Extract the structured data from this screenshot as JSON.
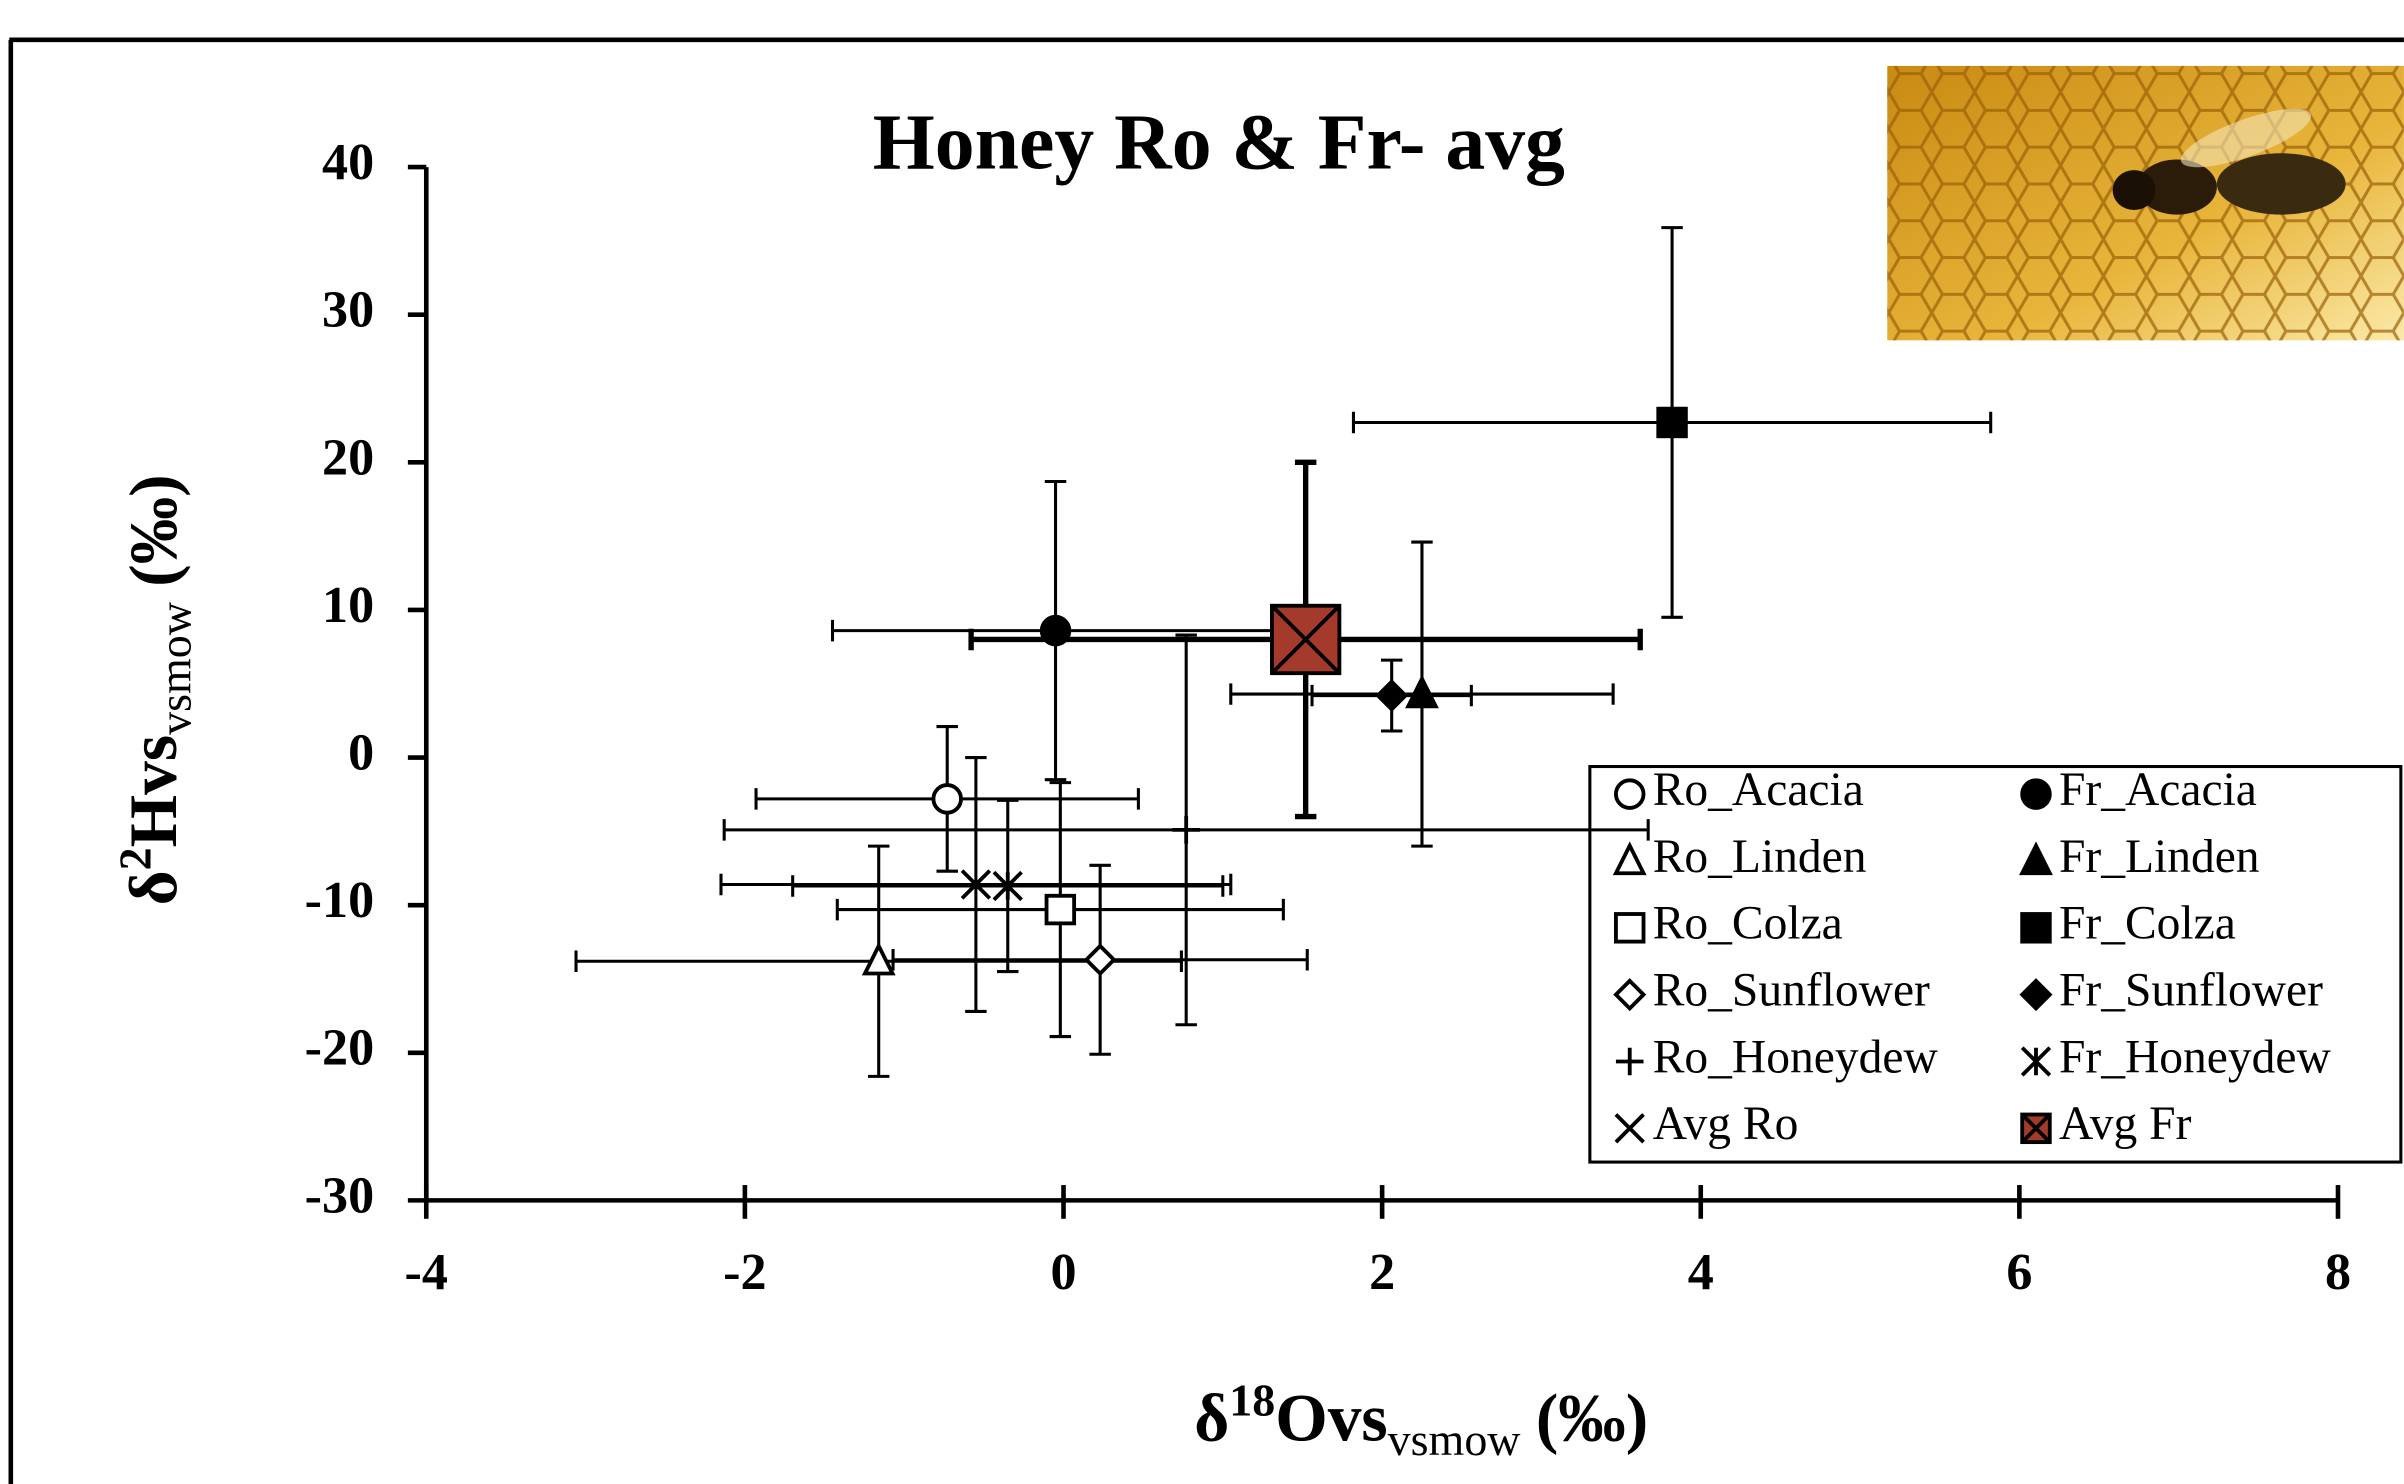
{
  "chart_data": {
    "type": "scatter",
    "title": "Honey Ro & Fr- avg",
    "x_label": {
      "symbol": "δ",
      "sup": "18",
      "main": "Ovs",
      "sub": "vsmow",
      "unit": "(‰)"
    },
    "y_label": {
      "symbol": "δ",
      "sup": "2",
      "main": "Hvs",
      "sub": "vsmow",
      "unit": "(‰)"
    },
    "xlim": [
      -4,
      8
    ],
    "xticks": [
      -4,
      -2,
      0,
      2,
      4,
      6,
      8
    ],
    "ylim": [
      -30,
      40
    ],
    "yticks": [
      -30,
      -20,
      -10,
      0,
      10,
      20,
      30,
      40
    ],
    "legend": "lower right",
    "series": [
      {
        "name": "Ro_Acacia",
        "marker": "circle-open",
        "color": "#000000",
        "x": [
          -0.73
        ],
        "y": [
          -2.8
        ],
        "xerr": [
          1.2
        ],
        "yerr": [
          4.9
        ]
      },
      {
        "name": "Fr_Acacia",
        "marker": "circle",
        "color": "#000000",
        "x": [
          -0.05
        ],
        "y": [
          8.6
        ],
        "xerr": [
          1.4
        ],
        "yerr": [
          10.1
        ]
      },
      {
        "name": "Ro_Linden",
        "marker": "triangle-open",
        "color": "#000000",
        "x": [
          -1.16
        ],
        "y": [
          -13.8
        ],
        "xerr": [
          1.9
        ],
        "yerr": [
          7.8
        ]
      },
      {
        "name": "Fr_Linden",
        "marker": "triangle",
        "color": "#000000",
        "x": [
          2.25
        ],
        "y": [
          4.3
        ],
        "xerr": [
          1.2
        ],
        "yerr": [
          10.3
        ]
      },
      {
        "name": "Ro_Colza",
        "marker": "square-open",
        "color": "#000000",
        "x": [
          -0.02
        ],
        "y": [
          -10.3
        ],
        "xerr": [
          1.4
        ],
        "yerr": [
          8.6
        ]
      },
      {
        "name": "Fr_Colza",
        "marker": "square",
        "color": "#000000",
        "x": [
          3.82
        ],
        "y": [
          22.7
        ],
        "xerr": [
          2.0
        ],
        "yerr": [
          13.2
        ]
      },
      {
        "name": "Ro_Sunflower",
        "marker": "diamond-open",
        "color": "#000000",
        "x": [
          0.23
        ],
        "y": [
          -13.7
        ],
        "xerr": [
          1.3
        ],
        "yerr": [
          6.4
        ]
      },
      {
        "name": "Fr_Sunflower",
        "marker": "diamond",
        "color": "#000000",
        "x": [
          2.06
        ],
        "y": [
          4.2
        ],
        "xerr": [
          0.5
        ],
        "yerr": [
          2.4
        ]
      },
      {
        "name": "Ro_Honeydew",
        "marker": "plus",
        "color": "#000000",
        "x": [
          0.77
        ],
        "y": [
          -4.9
        ],
        "xerr": [
          2.9
        ],
        "yerr": [
          13.2
        ]
      },
      {
        "name": "Fr_Honeydew",
        "marker": "asterisk",
        "color": "#000000",
        "x": [
          -0.35
        ],
        "y": [
          -8.7
        ],
        "xerr": [
          1.35
        ],
        "yerr": [
          5.8
        ]
      },
      {
        "name": "Avg Ro",
        "marker": "x",
        "color": "#000000",
        "x": [
          -0.55
        ],
        "y": [
          -8.6
        ],
        "xerr": [
          1.6
        ],
        "yerr": [
          8.6
        ]
      },
      {
        "name": "Avg Fr",
        "marker": "x-box",
        "color": "#a33a2c",
        "x": [
          1.52
        ],
        "y": [
          8.0
        ],
        "xerr": [
          2.1
        ],
        "yerr": [
          12.0
        ]
      }
    ]
  }
}
